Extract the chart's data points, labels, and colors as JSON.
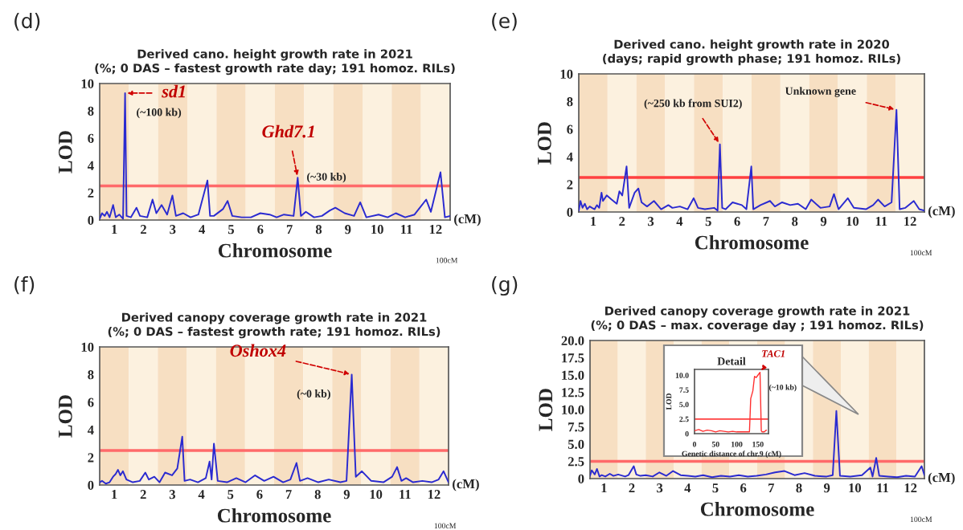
{
  "chart_data": [
    {
      "type": "line",
      "title": "Derived cano. height growth rate in 2021\n(%; 0 DAS – fastest growth rate day; 191 homoz. RILs)",
      "xlabel": "Chromosome",
      "ylabel": "LOD",
      "xlim": [
        0.5,
        12.5
      ],
      "ylim": [
        0,
        10
      ],
      "yticks": [
        0,
        2,
        4,
        6,
        8,
        10
      ],
      "xticks": [
        1,
        2,
        3,
        4,
        5,
        6,
        7,
        8,
        9,
        10,
        11,
        12
      ],
      "bands": [
        {
          "axis": "x",
          "from": 0.5,
          "to": 1.5,
          "color": "#f7dfc2"
        },
        {
          "axis": "x",
          "from": 1.5,
          "to": 2.5,
          "color": "#fcf1df"
        },
        {
          "axis": "x",
          "from": 2.5,
          "to": 3.5,
          "color": "#f7dfc2"
        },
        {
          "axis": "x",
          "from": 3.5,
          "to": 4.5,
          "color": "#fcf1df"
        },
        {
          "axis": "x",
          "from": 4.5,
          "to": 5.5,
          "color": "#f7dfc2"
        },
        {
          "axis": "x",
          "from": 5.5,
          "to": 6.5,
          "color": "#fcf1df"
        },
        {
          "axis": "x",
          "from": 6.5,
          "to": 7.5,
          "color": "#f7dfc2"
        },
        {
          "axis": "x",
          "from": 7.5,
          "to": 8.5,
          "color": "#fcf1df"
        },
        {
          "axis": "x",
          "from": 8.5,
          "to": 9.5,
          "color": "#f7dfc2"
        },
        {
          "axis": "x",
          "from": 9.5,
          "to": 10.5,
          "color": "#fcf1df"
        },
        {
          "axis": "x",
          "from": 10.5,
          "to": 11.5,
          "color": "#f7dfc2"
        },
        {
          "axis": "x",
          "from": 11.5,
          "to": 12.5,
          "color": "#fcf1df"
        }
      ],
      "ref_lines": [
        {
          "axis": "y",
          "value": 2.5,
          "color": "#ff6a6a"
        }
      ],
      "annotations": [
        "(d)",
        "(cM)",
        "100cM",
        {
          "text": "sd1",
          "x": 1.37,
          "y": 9.3
        },
        {
          "text": "(~100 kb)",
          "x": 1.37,
          "y": 9.3
        },
        {
          "text": "Ghd7.1",
          "x": 7.28,
          "y": 3.1
        },
        {
          "text": "(~30 kb)",
          "x": 7.28,
          "y": 3.1
        }
      ],
      "grid": false,
      "legend": false,
      "series": [
        {
          "color": "#2a2ad0",
          "x": [
            0.5,
            0.58,
            0.67,
            0.75,
            0.84,
            0.92,
            0.96,
            1.05,
            1.17,
            1.3,
            1.37,
            1.42,
            1.57,
            1.76,
            1.88,
            2.13,
            2.31,
            2.44,
            2.62,
            2.81,
            2.99,
            3.11,
            3.36,
            3.61,
            3.88,
            4.19,
            4.28,
            4.41,
            4.72,
            4.88,
            5.04,
            5.36,
            5.68,
            6.0,
            6.32,
            6.56,
            6.81,
            7.14,
            7.28,
            7.39,
            7.56,
            7.84,
            8.11,
            8.38,
            8.57,
            8.89,
            9.21,
            9.42,
            9.63,
            10.05,
            10.36,
            10.64,
            10.96,
            11.28,
            11.68,
            11.84,
            12.17,
            12.32,
            12.5
          ],
          "values": [
            0.1,
            0.5,
            0.3,
            0.6,
            0.2,
            0.8,
            1.1,
            0.2,
            0.4,
            0.1,
            9.3,
            0.3,
            0.2,
            0.9,
            0.3,
            0.2,
            1.5,
            0.5,
            1.1,
            0.4,
            1.8,
            0.3,
            0.5,
            0.2,
            0.4,
            2.9,
            0.3,
            0.3,
            0.8,
            1.4,
            0.3,
            0.2,
            0.2,
            0.5,
            0.4,
            0.2,
            0.4,
            0.3,
            3.1,
            0.3,
            0.6,
            0.2,
            0.3,
            0.7,
            0.9,
            0.5,
            0.3,
            1.3,
            0.2,
            0.4,
            0.2,
            0.5,
            0.2,
            0.4,
            1.5,
            0.6,
            3.5,
            0.2,
            0.3
          ]
        }
      ]
    },
    {
      "type": "line",
      "title": "Derived cano. height growth rate in 2020\n(days; rapid growth phase; 191 homoz. RILs)",
      "xlabel": "Chromosome",
      "ylabel": "LOD",
      "xlim": [
        0.5,
        12.5
      ],
      "ylim": [
        0,
        10
      ],
      "yticks": [
        0,
        2,
        4,
        6,
        8,
        10
      ],
      "xticks": [
        1,
        2,
        3,
        4,
        5,
        6,
        7,
        8,
        9,
        10,
        11,
        12
      ],
      "bands": [
        {
          "axis": "x",
          "from": 0.5,
          "to": 1.5,
          "color": "#f7dfc2"
        },
        {
          "axis": "x",
          "from": 1.5,
          "to": 2.5,
          "color": "#fcf1df"
        },
        {
          "axis": "x",
          "from": 2.5,
          "to": 3.5,
          "color": "#f7dfc2"
        },
        {
          "axis": "x",
          "from": 3.5,
          "to": 4.5,
          "color": "#fcf1df"
        },
        {
          "axis": "x",
          "from": 4.5,
          "to": 5.5,
          "color": "#f7dfc2"
        },
        {
          "axis": "x",
          "from": 5.5,
          "to": 6.5,
          "color": "#fcf1df"
        },
        {
          "axis": "x",
          "from": 6.5,
          "to": 7.5,
          "color": "#f7dfc2"
        },
        {
          "axis": "x",
          "from": 7.5,
          "to": 8.5,
          "color": "#fcf1df"
        },
        {
          "axis": "x",
          "from": 8.5,
          "to": 9.5,
          "color": "#f7dfc2"
        },
        {
          "axis": "x",
          "from": 9.5,
          "to": 10.5,
          "color": "#fcf1df"
        },
        {
          "axis": "x",
          "from": 10.5,
          "to": 11.5,
          "color": "#f7dfc2"
        },
        {
          "axis": "x",
          "from": 11.5,
          "to": 12.5,
          "color": "#fcf1df"
        }
      ],
      "ref_lines": [
        {
          "axis": "y",
          "value": 2.5,
          "color": "#ff4040"
        }
      ],
      "annotations": [
        "(e)",
        "(cM)",
        "100cM",
        {
          "text": "(~250 kb from SUI2)",
          "x": 5.4,
          "y": 4.9
        },
        {
          "text": "Unknown gene",
          "x": 11.53,
          "y": 7.4
        }
      ],
      "grid": false,
      "legend": false,
      "series": [
        {
          "color": "#2a2ad0",
          "x": [
            0.5,
            0.56,
            0.63,
            0.71,
            0.79,
            0.88,
            0.96,
            1.05,
            1.13,
            1.21,
            1.29,
            1.34,
            1.47,
            1.64,
            1.82,
            1.91,
            2.01,
            2.16,
            2.25,
            2.44,
            2.57,
            2.68,
            2.87,
            3.11,
            3.36,
            3.61,
            3.75,
            4.01,
            4.28,
            4.49,
            4.64,
            4.88,
            5.2,
            5.32,
            5.4,
            5.48,
            5.6,
            5.84,
            6.16,
            6.32,
            6.49,
            6.56,
            6.81,
            7.14,
            7.31,
            7.56,
            7.84,
            8.11,
            8.38,
            8.57,
            8.89,
            9.21,
            9.36,
            9.52,
            9.84,
            10.05,
            10.47,
            10.72,
            10.89,
            11.12,
            11.36,
            11.53,
            11.64,
            11.84,
            12.13,
            12.32,
            12.5
          ],
          "values": [
            0.1,
            0.8,
            0.3,
            0.6,
            0.2,
            0.4,
            0.3,
            0.2,
            0.5,
            0.3,
            1.4,
            0.8,
            1.2,
            0.9,
            0.6,
            1.5,
            1.2,
            3.3,
            0.3,
            1.4,
            1.7,
            0.7,
            0.4,
            0.8,
            0.2,
            0.5,
            0.3,
            0.4,
            0.2,
            1.0,
            0.3,
            0.2,
            0.3,
            0.1,
            4.9,
            0.3,
            0.2,
            0.7,
            0.5,
            0.2,
            3.3,
            0.2,
            0.5,
            0.8,
            0.4,
            0.7,
            0.5,
            0.6,
            0.2,
            0.9,
            0.3,
            0.4,
            1.3,
            0.2,
            1.0,
            0.3,
            0.2,
            0.5,
            0.9,
            0.4,
            0.7,
            7.4,
            0.2,
            0.3,
            0.8,
            0.2,
            0.1
          ]
        }
      ]
    },
    {
      "type": "line",
      "title": "Derived canopy coverage growth rate in 2021\n(%; 0 DAS – fastest growth rate; 191 homoz. RILs)",
      "xlabel": "Chromosome",
      "ylabel": "LOD",
      "xlim": [
        0.5,
        12.5
      ],
      "ylim": [
        0,
        10
      ],
      "yticks": [
        0,
        2,
        4,
        6,
        8,
        10
      ],
      "xticks": [
        1,
        2,
        3,
        4,
        5,
        6,
        7,
        8,
        9,
        10,
        11,
        12
      ],
      "bands": [
        {
          "axis": "x",
          "from": 0.5,
          "to": 1.5,
          "color": "#f7dfc2"
        },
        {
          "axis": "x",
          "from": 1.5,
          "to": 2.5,
          "color": "#fcf1df"
        },
        {
          "axis": "x",
          "from": 2.5,
          "to": 3.5,
          "color": "#f7dfc2"
        },
        {
          "axis": "x",
          "from": 3.5,
          "to": 4.5,
          "color": "#fcf1df"
        },
        {
          "axis": "x",
          "from": 4.5,
          "to": 5.5,
          "color": "#f7dfc2"
        },
        {
          "axis": "x",
          "from": 5.5,
          "to": 6.5,
          "color": "#fcf1df"
        },
        {
          "axis": "x",
          "from": 6.5,
          "to": 7.5,
          "color": "#f7dfc2"
        },
        {
          "axis": "x",
          "from": 7.5,
          "to": 8.5,
          "color": "#fcf1df"
        },
        {
          "axis": "x",
          "from": 8.5,
          "to": 9.5,
          "color": "#f7dfc2"
        },
        {
          "axis": "x",
          "from": 9.5,
          "to": 10.5,
          "color": "#fcf1df"
        },
        {
          "axis": "x",
          "from": 10.5,
          "to": 11.5,
          "color": "#f7dfc2"
        },
        {
          "axis": "x",
          "from": 11.5,
          "to": 12.5,
          "color": "#fcf1df"
        }
      ],
      "ref_lines": [
        {
          "axis": "y",
          "value": 2.5,
          "color": "#ff6a6a"
        }
      ],
      "annotations": [
        "(f)",
        "(cM)",
        "100cM",
        {
          "text": "Oshox4",
          "x": 9.17,
          "y": 8.0
        },
        {
          "text": "(~0 kb)",
          "x": 9.17,
          "y": 8.0
        }
      ],
      "grid": false,
      "legend": false,
      "series": [
        {
          "color": "#2a2ad0",
          "x": [
            0.5,
            0.58,
            0.71,
            0.84,
            0.96,
            1.05,
            1.13,
            1.21,
            1.3,
            1.42,
            1.64,
            1.88,
            2.07,
            2.19,
            2.38,
            2.56,
            2.75,
            2.99,
            3.17,
            3.34,
            3.42,
            3.61,
            3.88,
            4.15,
            4.28,
            4.35,
            4.43,
            4.56,
            4.88,
            5.2,
            5.52,
            5.84,
            6.16,
            6.48,
            6.81,
            7.06,
            7.27,
            7.39,
            7.65,
            8.02,
            8.38,
            8.78,
            8.99,
            9.17,
            9.31,
            9.52,
            9.84,
            10.26,
            10.56,
            10.73,
            10.88,
            11.04,
            11.28,
            11.6,
            11.92,
            12.16,
            12.33,
            12.5
          ],
          "values": [
            0.2,
            0.3,
            0.1,
            0.2,
            0.6,
            0.8,
            1.1,
            0.7,
            1.0,
            0.4,
            0.2,
            0.3,
            0.9,
            0.4,
            0.6,
            0.2,
            0.9,
            0.7,
            1.2,
            3.5,
            0.3,
            0.4,
            0.2,
            0.5,
            1.7,
            0.4,
            3.0,
            0.3,
            0.2,
            0.5,
            0.2,
            0.7,
            0.3,
            0.6,
            0.2,
            0.4,
            1.6,
            0.3,
            0.5,
            0.2,
            0.4,
            0.2,
            0.3,
            8.0,
            0.6,
            1.0,
            0.3,
            0.2,
            0.6,
            1.3,
            0.3,
            0.5,
            0.2,
            0.3,
            0.2,
            0.4,
            1.0,
            0.2
          ]
        }
      ]
    },
    {
      "type": "line",
      "title": "Derived canopy coverage growth rate in 2021\n(%; 0 DAS – max. coverage day ; 191 homoz. RILs)",
      "xlabel": "Chromosome",
      "ylabel": "LOD",
      "xlim": [
        0.5,
        12.5
      ],
      "ylim": [
        0,
        20
      ],
      "yticks": [
        {
          "value": 0,
          "label": "0"
        },
        {
          "value": 2.5,
          "label": "2.5"
        },
        {
          "value": 5,
          "label": "5.0"
        },
        {
          "value": 7.5,
          "label": "7.5"
        },
        {
          "value": 10,
          "label": "10.0"
        },
        {
          "value": 12.5,
          "label": "12.5"
        },
        {
          "value": 15,
          "label": "15.0"
        },
        {
          "value": 17.5,
          "label": "17.5"
        },
        {
          "value": 20,
          "label": "20.0"
        }
      ],
      "xticks": [
        1,
        2,
        3,
        4,
        5,
        6,
        7,
        8,
        9,
        10,
        11,
        12
      ],
      "bands": [
        {
          "axis": "x",
          "from": 0.5,
          "to": 1.5,
          "color": "#f7dfc2"
        },
        {
          "axis": "x",
          "from": 1.5,
          "to": 2.5,
          "color": "#fcf1df"
        },
        {
          "axis": "x",
          "from": 2.5,
          "to": 3.5,
          "color": "#f7dfc2"
        },
        {
          "axis": "x",
          "from": 3.5,
          "to": 4.5,
          "color": "#fcf1df"
        },
        {
          "axis": "x",
          "from": 4.5,
          "to": 5.5,
          "color": "#f7dfc2"
        },
        {
          "axis": "x",
          "from": 5.5,
          "to": 6.5,
          "color": "#fcf1df"
        },
        {
          "axis": "x",
          "from": 6.5,
          "to": 7.5,
          "color": "#f7dfc2"
        },
        {
          "axis": "x",
          "from": 7.5,
          "to": 8.5,
          "color": "#fcf1df"
        },
        {
          "axis": "x",
          "from": 8.5,
          "to": 9.5,
          "color": "#f7dfc2"
        },
        {
          "axis": "x",
          "from": 9.5,
          "to": 10.5,
          "color": "#fcf1df"
        },
        {
          "axis": "x",
          "from": 10.5,
          "to": 11.5,
          "color": "#f7dfc2"
        },
        {
          "axis": "x",
          "from": 11.5,
          "to": 12.5,
          "color": "#fcf1df"
        }
      ],
      "ref_lines": [
        {
          "axis": "y",
          "value": 2.5,
          "color": "#ff6a6a"
        }
      ],
      "annotations": [
        "(g)",
        "(cM)",
        "100cM"
      ],
      "grid": false,
      "legend": false,
      "series": [
        {
          "color": "#2a2ad0",
          "x": [
            0.5,
            0.56,
            0.67,
            0.75,
            0.84,
            0.92,
            1.05,
            1.21,
            1.34,
            1.51,
            1.76,
            1.88,
            2.07,
            2.16,
            2.31,
            2.5,
            2.75,
            2.99,
            3.24,
            3.48,
            3.75,
            4.01,
            4.28,
            4.56,
            4.88,
            5.2,
            5.52,
            5.84,
            6.16,
            6.48,
            6.81,
            7.14,
            7.48,
            7.84,
            8.2,
            8.57,
            8.99,
            9.21,
            9.34,
            9.47,
            9.84,
            10.26,
            10.56,
            10.64,
            10.77,
            10.88,
            11.2,
            11.52,
            11.84,
            12.16,
            12.4,
            12.5
          ],
          "values": [
            0.4,
            1.2,
            0.6,
            1.4,
            0.3,
            0.5,
            0.3,
            0.7,
            0.4,
            0.6,
            0.3,
            0.5,
            1.8,
            0.6,
            0.4,
            0.5,
            0.3,
            0.9,
            0.4,
            1.1,
            0.5,
            0.4,
            0.3,
            0.5,
            0.2,
            0.4,
            0.3,
            0.5,
            0.3,
            0.4,
            0.6,
            0.9,
            1.1,
            0.5,
            0.8,
            0.4,
            0.3,
            0.5,
            9.8,
            0.4,
            0.3,
            0.5,
            1.6,
            0.3,
            3.0,
            0.4,
            0.3,
            0.2,
            0.4,
            0.3,
            1.8,
            0.5
          ]
        }
      ]
    },
    {
      "type": "line",
      "title": "Detail",
      "xlabel": "Genetic distance of chr.9 (cM)",
      "ylabel": "LOD",
      "xlim": [
        0,
        175
      ],
      "xticks": [
        0,
        50,
        100,
        150
      ],
      "ylim": [
        0,
        11
      ],
      "yticks": [
        {
          "value": 0,
          "label": "0"
        },
        {
          "value": 2.5,
          "label": "2.5"
        },
        {
          "value": 5,
          "label": "5.0"
        },
        {
          "value": 7.5,
          "label": "7.5"
        },
        {
          "value": 10,
          "label": "10.0"
        }
      ],
      "ref_lines": [
        {
          "axis": "y",
          "value": 2.5,
          "color": "#ff4040"
        }
      ],
      "annotations": [
        {
          "text": "TAC1",
          "x": 155,
          "y": 10.5
        },
        {
          "text": "(~10 kb)",
          "x": 155,
          "y": 10.5
        }
      ],
      "grid": false,
      "legend": false,
      "series": [
        {
          "color": "#ff3030",
          "x": [
            0,
            10,
            20,
            30,
            40,
            50,
            60,
            70,
            80,
            90,
            100,
            110,
            120,
            130,
            133,
            138,
            142,
            146,
            150,
            155,
            158,
            160,
            165,
            170
          ],
          "values": [
            0.5,
            0.7,
            0.4,
            0.6,
            0.5,
            0.3,
            0.5,
            0.4,
            0.3,
            0.4,
            0.3,
            0.3,
            0.3,
            0.3,
            6.0,
            7.3,
            9.8,
            9.6,
            10.0,
            10.5,
            0.5,
            0.3,
            0.3,
            0.6
          ]
        }
      ]
    }
  ]
}
